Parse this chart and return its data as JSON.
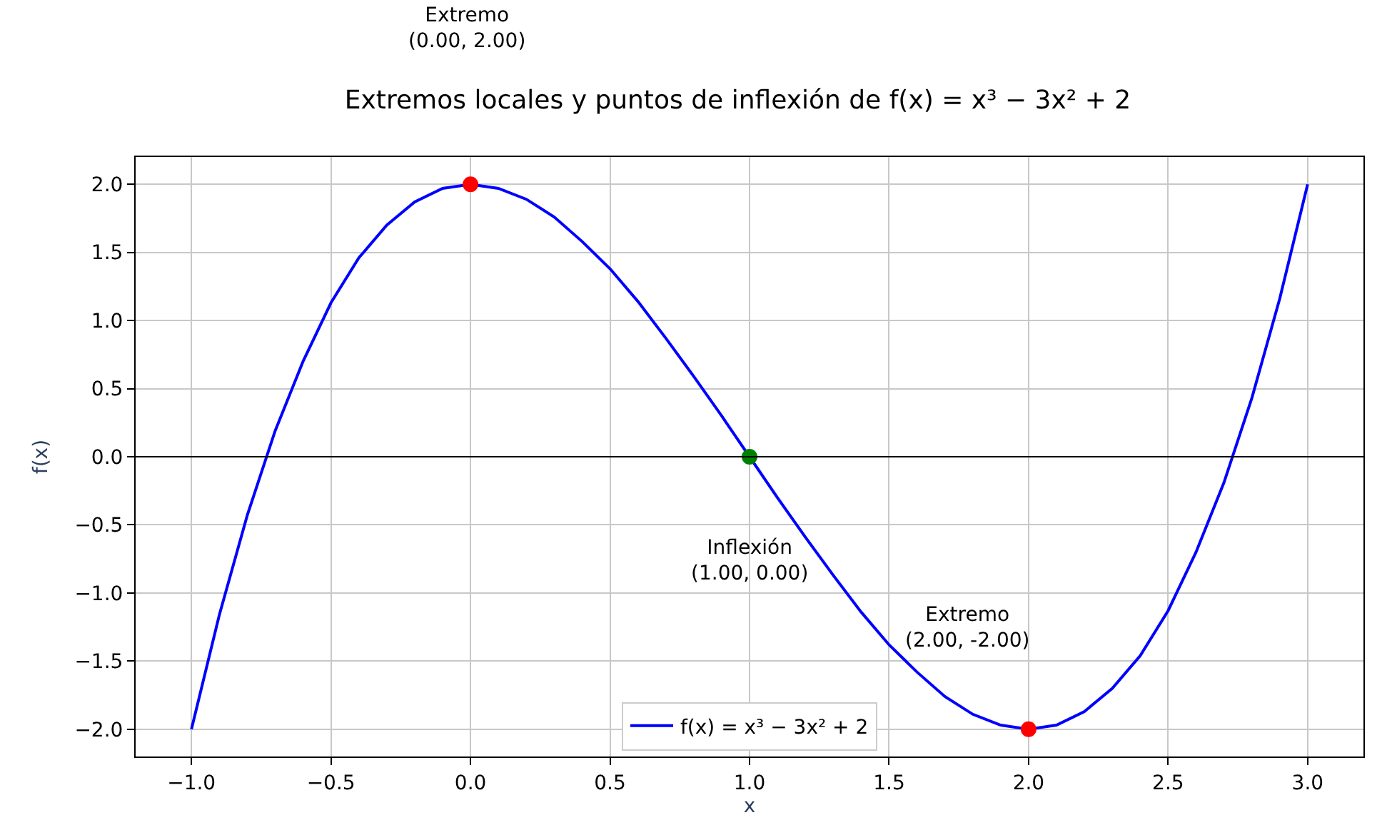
{
  "chart_data": {
    "type": "line",
    "title": "Extremos locales y puntos de inflexión de f(x) = x³ − 3x² + 2",
    "xlabel": "x",
    "ylabel": "f(x)",
    "series": [
      {
        "name": "f(x) = x³ − 3x² + 2",
        "color": "#0000ff",
        "marker": "none",
        "x": [
          -1.0,
          -0.9,
          -0.8,
          -0.7,
          -0.6,
          -0.5,
          -0.4,
          -0.3,
          -0.2,
          -0.1,
          0.0,
          0.1,
          0.2,
          0.3,
          0.4,
          0.5,
          0.6,
          0.7,
          0.8,
          0.9,
          1.0,
          1.1,
          1.2,
          1.3,
          1.4,
          1.5,
          1.6,
          1.7,
          1.8,
          1.9,
          2.0,
          2.1,
          2.2,
          2.3,
          2.4,
          2.5,
          2.6,
          2.7,
          2.8,
          2.9,
          3.0
        ],
        "values": [
          -2.0,
          -1.16,
          -0.43,
          0.19,
          0.7,
          1.13,
          1.46,
          1.7,
          1.87,
          1.97,
          2.0,
          1.97,
          1.89,
          1.76,
          1.58,
          1.38,
          1.14,
          0.87,
          0.59,
          0.3,
          0.0,
          -0.3,
          -0.59,
          -0.87,
          -1.14,
          -1.38,
          -1.58,
          -1.76,
          -1.89,
          -1.97,
          -2.0,
          -1.97,
          -1.87,
          -1.7,
          -1.46,
          -1.13,
          -0.7,
          -0.19,
          0.43,
          1.16,
          2.0
        ]
      },
      {
        "color": "#ff0000",
        "type": "scatter",
        "marker": "circle",
        "x": [
          0.0,
          2.0
        ],
        "values": [
          2.0,
          -2.0
        ]
      },
      {
        "color": "#008000",
        "type": "scatter",
        "marker": "circle",
        "x": [
          1.0
        ],
        "values": [
          0.0
        ]
      }
    ],
    "annotations": [
      "Extremo\n(0.00, 2.00)",
      "Inflexión\n(1.00, 0.00)",
      "Extremo\n(2.00, -2.00)"
    ],
    "ref_lines": [
      {
        "axis": "y",
        "value": 0,
        "color": "#000000"
      }
    ],
    "xlim": [
      -1.2,
      3.2
    ],
    "ylim": [
      -2.2,
      2.2
    ],
    "xticks": [
      {
        "value": -1.0,
        "label": "−1.0"
      },
      {
        "value": -0.5,
        "label": "−0.5"
      },
      {
        "value": 0.0,
        "label": "0.0"
      },
      {
        "value": 0.5,
        "label": "0.5"
      },
      {
        "value": 1.0,
        "label": "1.0"
      },
      {
        "value": 1.5,
        "label": "1.5"
      },
      {
        "value": 2.0,
        "label": "2.0"
      },
      {
        "value": 2.5,
        "label": "2.5"
      },
      {
        "value": 3.0,
        "label": "3.0"
      }
    ],
    "yticks": [
      {
        "value": -2.0,
        "label": "−2.0"
      },
      {
        "value": -1.5,
        "label": "−1.5"
      },
      {
        "value": -1.0,
        "label": "−1.0"
      },
      {
        "value": -0.5,
        "label": "−0.5"
      },
      {
        "value": 0.0,
        "label": "0.0"
      },
      {
        "value": 0.5,
        "label": "0.5"
      },
      {
        "value": 1.0,
        "label": "1.0"
      },
      {
        "value": 1.5,
        "label": "1.5"
      },
      {
        "value": 2.0,
        "label": "2.0"
      }
    ],
    "grid": true,
    "legend": "bottom"
  }
}
